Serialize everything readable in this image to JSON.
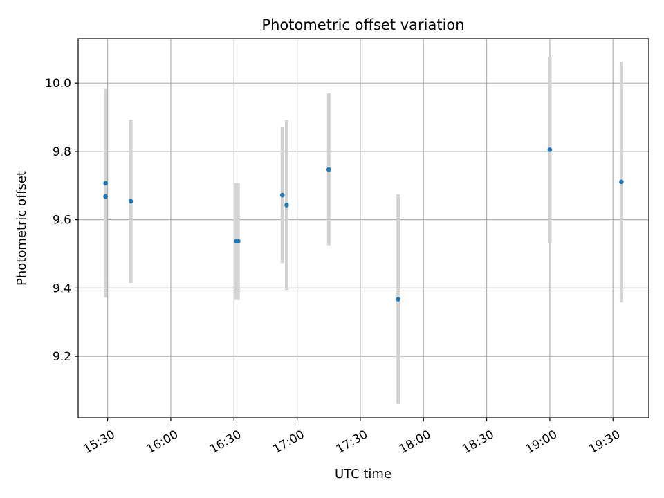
{
  "chart_data": {
    "type": "scatter",
    "title": "Photometric offset variation",
    "xlabel": "UTC time",
    "ylabel": "Photometric offset",
    "x_tick_labels": [
      "15:30",
      "16:00",
      "16:30",
      "17:00",
      "17:30",
      "18:00",
      "18:30",
      "19:00",
      "19:30"
    ],
    "y_tick_labels": [
      "9.2",
      "9.4",
      "9.6",
      "9.8",
      "10.0"
    ],
    "y_ticks": [
      9.2,
      9.4,
      9.6,
      9.8,
      10.0
    ],
    "xlim": [
      "15:16",
      "19:47"
    ],
    "ylim": [
      9.02,
      10.13
    ],
    "grid": true,
    "points": [
      {
        "x": "15:29",
        "y": 9.668,
        "ylow": 9.372,
        "yhigh": 9.965
      },
      {
        "x": "15:29",
        "y": 9.707,
        "ylow": 9.43,
        "yhigh": 9.985
      },
      {
        "x": "15:41",
        "y": 9.654,
        "ylow": 9.415,
        "yhigh": 9.893
      },
      {
        "x": "16:31",
        "y": 9.537,
        "ylow": 9.365,
        "yhigh": 9.708
      },
      {
        "x": "16:32",
        "y": 9.537,
        "ylow": 9.365,
        "yhigh": 9.708
      },
      {
        "x": "16:53",
        "y": 9.672,
        "ylow": 9.473,
        "yhigh": 9.871
      },
      {
        "x": "16:55",
        "y": 9.643,
        "ylow": 9.394,
        "yhigh": 9.892
      },
      {
        "x": "17:15",
        "y": 9.747,
        "ylow": 9.525,
        "yhigh": 9.97
      },
      {
        "x": "17:48",
        "y": 9.367,
        "ylow": 9.061,
        "yhigh": 9.674
      },
      {
        "x": "19:00",
        "y": 9.805,
        "ylow": 9.532,
        "yhigh": 10.077
      },
      {
        "x": "19:34",
        "y": 9.711,
        "ylow": 9.358,
        "yhigh": 10.063
      }
    ],
    "colors": {
      "marker": "#1f77b4",
      "errorbar": "#d3d3d3",
      "grid": "#b0b0b0"
    }
  }
}
